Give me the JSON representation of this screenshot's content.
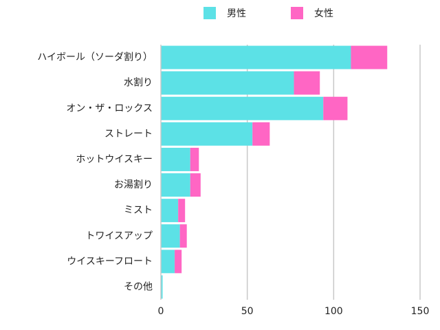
{
  "chart_data": {
    "type": "stacked-bar-horizontal",
    "categories": [
      "ハイボール（ソーダ割り）",
      "水割り",
      "オン・ザ・ロックス",
      "ストレート",
      "ホットウイスキー",
      "お湯割り",
      "ミスト",
      "トワイスアップ",
      "ウイスキーフロート",
      "その他"
    ],
    "series": [
      {
        "name": "男性",
        "color": "#5ce1e6",
        "values": [
          110,
          77,
          94,
          53,
          17,
          17,
          10,
          11,
          8,
          1
        ]
      },
      {
        "name": "女性",
        "color": "#ff66c4",
        "values": [
          21,
          15,
          14,
          10,
          5,
          6,
          4,
          4,
          4,
          0
        ]
      }
    ],
    "xlim": [
      0,
      150
    ],
    "xticks": [
      0,
      50,
      100,
      150
    ],
    "grid": true,
    "legend": "top"
  }
}
